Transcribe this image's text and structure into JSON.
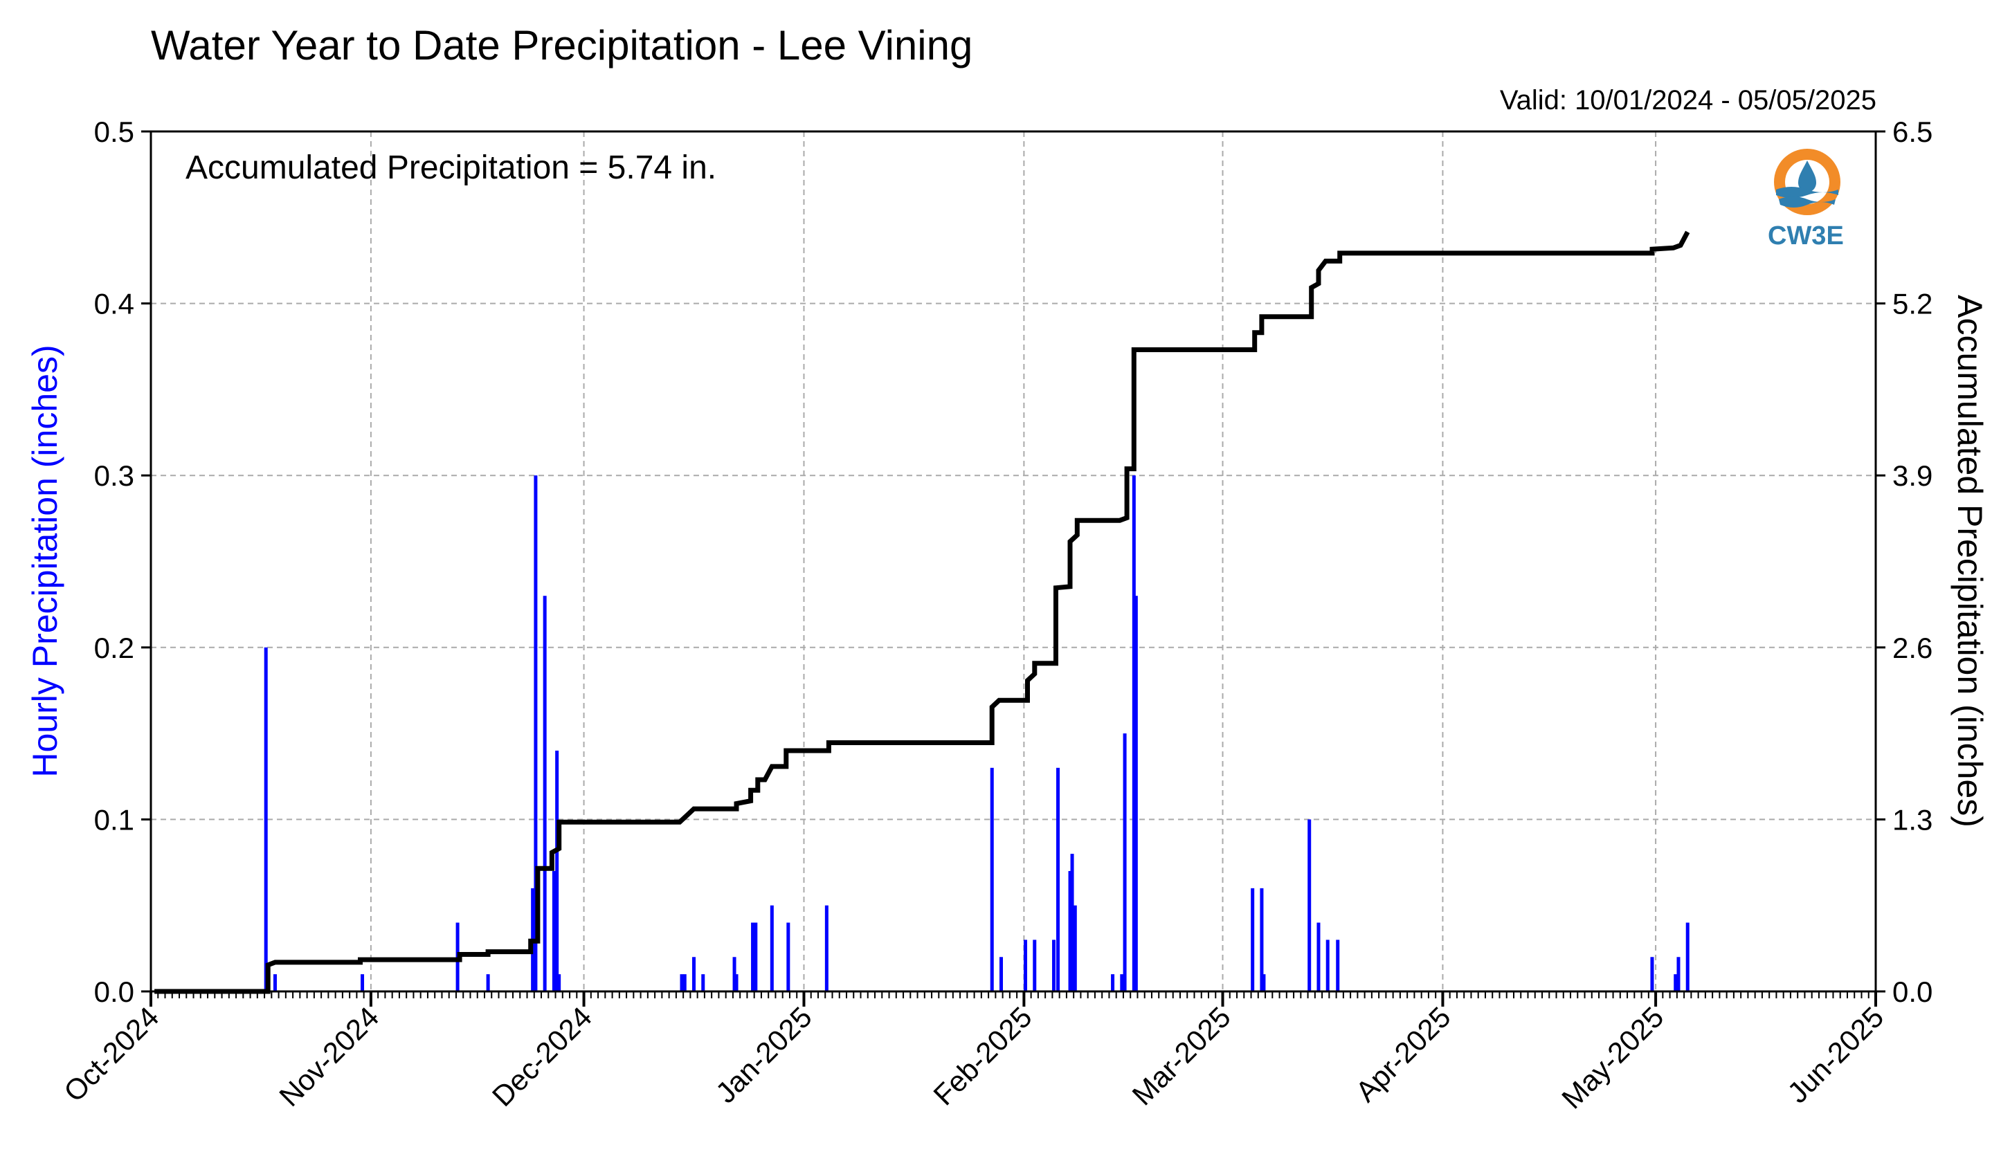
{
  "chart_data": {
    "type": "bar",
    "title": "Water Year to Date Precipitation - Lee Vining",
    "valid_text": "Valid: 10/01/2024 - 05/05/2025",
    "annotation": "Accumulated Precipitation = 5.74 in.",
    "ylabel_left": "Hourly Precipitation (inches)",
    "ylabel_right": "Accumulated Precipitation (inches)",
    "xlim": [
      "2024-10-01",
      "2025-06-01"
    ],
    "ylim_left": [
      0,
      0.5
    ],
    "ylim_right": [
      0,
      6.5
    ],
    "left_ticks": [
      "0.0",
      "0.1",
      "0.2",
      "0.3",
      "0.4",
      "0.5"
    ],
    "right_ticks": [
      "0.0",
      "1.3",
      "2.6",
      "3.9",
      "5.2",
      "6.5"
    ],
    "x_ticks": [
      {
        "date": "2024-10-01",
        "label": "Oct-2024"
      },
      {
        "date": "2024-11-01",
        "label": "Nov-2024"
      },
      {
        "date": "2024-12-01",
        "label": "Dec-2024"
      },
      {
        "date": "2025-01-01",
        "label": "Jan-2025"
      },
      {
        "date": "2025-02-01",
        "label": "Feb-2025"
      },
      {
        "date": "2025-03-01",
        "label": "Mar-2025"
      },
      {
        "date": "2025-04-01",
        "label": "Apr-2025"
      },
      {
        "date": "2025-05-01",
        "label": "May-2025"
      },
      {
        "date": "2025-06-01",
        "label": "Jun-2025"
      }
    ],
    "grid": true,
    "colors": {
      "hourly": "#0000ff",
      "accumulated": "#000000",
      "grid": "#aaaaaa",
      "ylabel_left": "#0000ff"
    },
    "series": [
      {
        "name": "Hourly Precipitation",
        "axis": "left",
        "points": [
          [
            "2024-10-17",
            0.2
          ],
          [
            "2024-10-18",
            0.01
          ],
          [
            "2024-10-30",
            0.01
          ],
          [
            "2024-11-13",
            0.04
          ],
          [
            "2024-11-17",
            0.01
          ],
          [
            "2024-11-23",
            0.06
          ],
          [
            "2024-11-24",
            0.3
          ],
          [
            "2024-11-25",
            0.23
          ],
          [
            "2024-11-26",
            0.07
          ],
          [
            "2024-11-27",
            0.14
          ],
          [
            "2024-11-27",
            0.01
          ],
          [
            "2024-12-14",
            0.01
          ],
          [
            "2024-12-15",
            0.01
          ],
          [
            "2024-12-16",
            0.02
          ],
          [
            "2024-12-17",
            0.01
          ],
          [
            "2024-12-22",
            0.02
          ],
          [
            "2024-12-22",
            0.01
          ],
          [
            "2024-12-24",
            0.04
          ],
          [
            "2024-12-25",
            0.04
          ],
          [
            "2024-12-27",
            0.05
          ],
          [
            "2024-12-29",
            0.04
          ],
          [
            "2025-01-04",
            0.05
          ],
          [
            "2025-01-27",
            0.13
          ],
          [
            "2025-01-28",
            0.02
          ],
          [
            "2025-02-01",
            0.03
          ],
          [
            "2025-02-02",
            0.03
          ],
          [
            "2025-02-05",
            0.13
          ],
          [
            "2025-02-05",
            0.03
          ],
          [
            "2025-02-07",
            0.07
          ],
          [
            "2025-02-07",
            0.08
          ],
          [
            "2025-02-08",
            0.05
          ],
          [
            "2025-02-13",
            0.01
          ],
          [
            "2025-02-14",
            0.01
          ],
          [
            "2025-02-15",
            0.15
          ],
          [
            "2025-02-16",
            0.3
          ],
          [
            "2025-02-16",
            0.23
          ],
          [
            "2025-03-05",
            0.06
          ],
          [
            "2025-03-06",
            0.06
          ],
          [
            "2025-03-06",
            0.01
          ],
          [
            "2025-03-13",
            0.1
          ],
          [
            "2025-03-14",
            0.04
          ],
          [
            "2025-03-15",
            0.03
          ],
          [
            "2025-03-17",
            0.03
          ],
          [
            "2025-04-30",
            0.02
          ],
          [
            "2025-05-03",
            0.01
          ],
          [
            "2025-05-04",
            0.02
          ],
          [
            "2025-05-05",
            0.04
          ]
        ]
      },
      {
        "name": "Accumulated Precipitation",
        "axis": "right",
        "points": [
          [
            "2024-10-01",
            0.0
          ],
          [
            "2024-10-17",
            0.0
          ],
          [
            "2024-10-17",
            0.2
          ],
          [
            "2024-10-18",
            0.22
          ],
          [
            "2024-10-30",
            0.22
          ],
          [
            "2024-10-30",
            0.24
          ],
          [
            "2024-11-13",
            0.24
          ],
          [
            "2024-11-13",
            0.28
          ],
          [
            "2024-11-17",
            0.28
          ],
          [
            "2024-11-17",
            0.3
          ],
          [
            "2024-11-23",
            0.3
          ],
          [
            "2024-11-23",
            0.38
          ],
          [
            "2024-11-24",
            0.38
          ],
          [
            "2024-11-24",
            0.93
          ],
          [
            "2024-11-26",
            0.93
          ],
          [
            "2024-11-26",
            1.05
          ],
          [
            "2024-11-27",
            1.08
          ],
          [
            "2024-11-27",
            1.28
          ],
          [
            "2024-12-14",
            1.28
          ],
          [
            "2024-12-15",
            1.33
          ],
          [
            "2024-12-16",
            1.38
          ],
          [
            "2024-12-22",
            1.38
          ],
          [
            "2024-12-22",
            1.42
          ],
          [
            "2024-12-24",
            1.44
          ],
          [
            "2024-12-24",
            1.52
          ],
          [
            "2024-12-25",
            1.52
          ],
          [
            "2024-12-25",
            1.6
          ],
          [
            "2024-12-26",
            1.6
          ],
          [
            "2024-12-27",
            1.7
          ],
          [
            "2024-12-29",
            1.7
          ],
          [
            "2024-12-29",
            1.82
          ],
          [
            "2025-01-04",
            1.82
          ],
          [
            "2025-01-04",
            1.88
          ],
          [
            "2025-01-27",
            1.88
          ],
          [
            "2025-01-27",
            2.15
          ],
          [
            "2025-01-28",
            2.2
          ],
          [
            "2025-02-01",
            2.2
          ],
          [
            "2025-02-01",
            2.35
          ],
          [
            "2025-02-02",
            2.4
          ],
          [
            "2025-02-02",
            2.48
          ],
          [
            "2025-02-05",
            2.48
          ],
          [
            "2025-02-05",
            3.05
          ],
          [
            "2025-02-07",
            3.06
          ],
          [
            "2025-02-07",
            3.4
          ],
          [
            "2025-02-08",
            3.45
          ],
          [
            "2025-02-08",
            3.56
          ],
          [
            "2025-02-14",
            3.56
          ],
          [
            "2025-02-15",
            3.58
          ],
          [
            "2025-02-15",
            3.95
          ],
          [
            "2025-02-16",
            3.95
          ],
          [
            "2025-02-16",
            4.85
          ],
          [
            "2025-03-05",
            4.85
          ],
          [
            "2025-03-05",
            4.98
          ],
          [
            "2025-03-06",
            4.98
          ],
          [
            "2025-03-06",
            5.1
          ],
          [
            "2025-03-13",
            5.1
          ],
          [
            "2025-03-13",
            5.32
          ],
          [
            "2025-03-14",
            5.35
          ],
          [
            "2025-03-14",
            5.45
          ],
          [
            "2025-03-15",
            5.52
          ],
          [
            "2025-03-17",
            5.52
          ],
          [
            "2025-03-17",
            5.58
          ],
          [
            "2025-04-30",
            5.58
          ],
          [
            "2025-04-30",
            5.61
          ],
          [
            "2025-05-03",
            5.62
          ],
          [
            "2025-05-04",
            5.64
          ],
          [
            "2025-05-05",
            5.74
          ]
        ]
      }
    ]
  },
  "logo": {
    "text": "CW3E",
    "ring_color": "#f28c28",
    "wave_color": "#2f7fb0"
  }
}
